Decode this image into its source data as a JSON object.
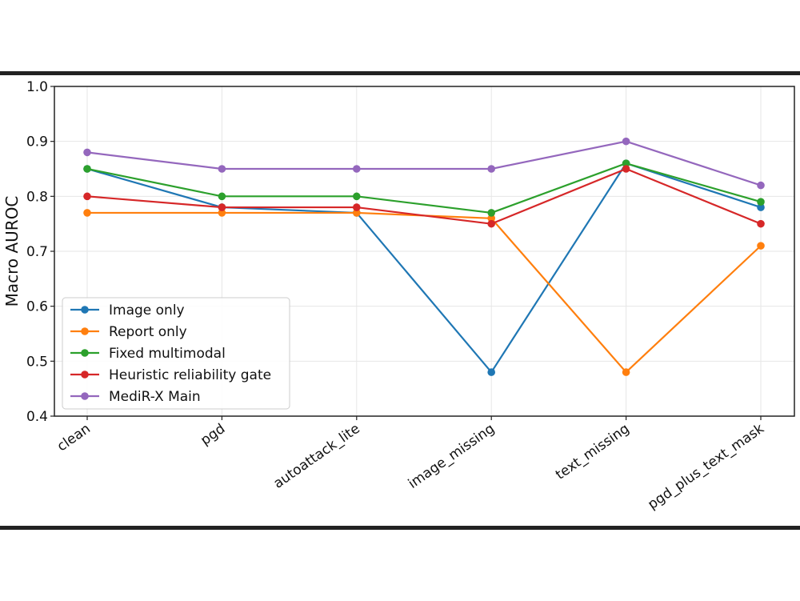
{
  "chart_data": {
    "type": "line",
    "title": "",
    "xlabel": "",
    "ylabel": "Macro AUROC",
    "ylim": [
      0.4,
      1.0
    ],
    "yticks": [
      "0.4",
      "0.5",
      "0.6",
      "0.7",
      "0.8",
      "0.9",
      "1.0"
    ],
    "grid": true,
    "legend_position": "lower-left",
    "categories": [
      "clean",
      "pgd",
      "autoattack_lite",
      "image_missing",
      "text_missing",
      "pgd_plus_text_mask"
    ],
    "series": [
      {
        "name": "Image only",
        "color": "#1f77b4",
        "values": [
          0.85,
          0.78,
          0.77,
          0.48,
          0.86,
          0.78
        ]
      },
      {
        "name": "Report only",
        "color": "#ff7f0e",
        "values": [
          0.77,
          0.77,
          0.77,
          0.76,
          0.48,
          0.71
        ]
      },
      {
        "name": "Fixed multimodal",
        "color": "#2ca02c",
        "values": [
          0.85,
          0.8,
          0.8,
          0.77,
          0.86,
          0.79
        ]
      },
      {
        "name": "Heuristic reliability gate",
        "color": "#d62728",
        "values": [
          0.8,
          0.78,
          0.78,
          0.75,
          0.85,
          0.75
        ]
      },
      {
        "name": "MediR-X Main",
        "color": "#9467bd",
        "values": [
          0.88,
          0.85,
          0.85,
          0.85,
          0.9,
          0.82
        ]
      }
    ]
  }
}
